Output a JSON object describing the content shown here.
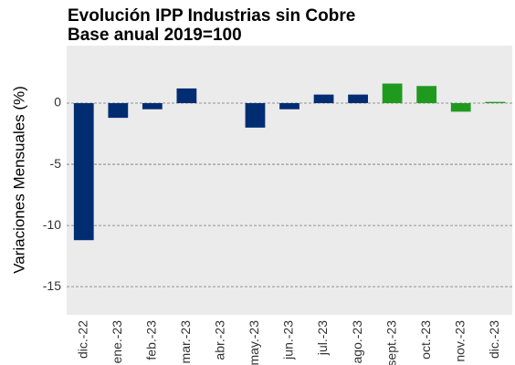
{
  "chart_data": {
    "type": "bar",
    "title": "Evolución IPP Industrias sin Cobre",
    "subtitle": "Base anual 2019=100",
    "y_label": "Variaciones Mensuales (%)",
    "categories": [
      "dic.-22",
      "ene.-23",
      "feb.-23",
      "mar.-23",
      "abr.-23",
      "may.-23",
      "jun.-23",
      "jul.-23",
      "ago.-23",
      "sept.-23",
      "oct.-23",
      "nov.-23",
      "dic.-23"
    ],
    "values": [
      -11.2,
      -1.2,
      -0.5,
      1.2,
      0,
      -2.0,
      -0.5,
      0.7,
      0.7,
      1.6,
      1.4,
      -0.7,
      0.1
    ],
    "colors": [
      "#002d72",
      "#002d72",
      "#002d72",
      "#002d72",
      "#002d72",
      "#002d72",
      "#002d72",
      "#002d72",
      "#002d72",
      "#1f9a1f",
      "#1f9a1f",
      "#1f9a1f",
      "#1f9a1f"
    ],
    "ylim": [
      -17.3,
      4.7
    ],
    "yticks": [
      -15,
      -10,
      -5,
      0
    ],
    "grid": true
  }
}
